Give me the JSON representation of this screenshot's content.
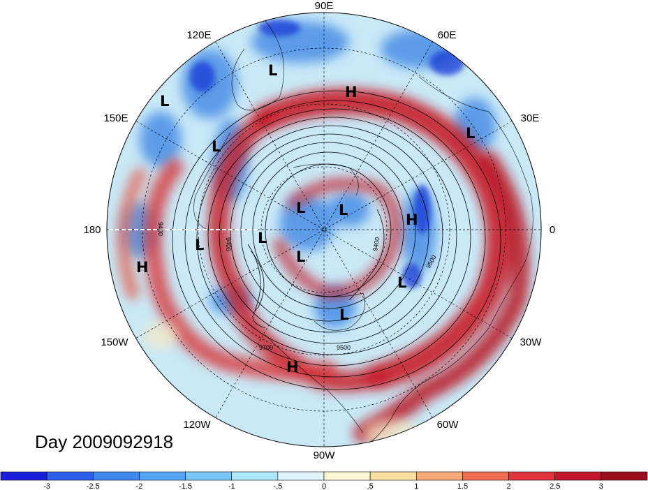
{
  "title": "Day 2009092918",
  "longitude_labels": [
    {
      "id": "lon-90e",
      "text": "90E"
    },
    {
      "id": "lon-60e",
      "text": "60E"
    },
    {
      "id": "lon-30e",
      "text": "30E"
    },
    {
      "id": "lon-0",
      "text": "0"
    },
    {
      "id": "lon-30w",
      "text": "30W"
    },
    {
      "id": "lon-60w",
      "text": "60W"
    },
    {
      "id": "lon-90w",
      "text": "90W"
    },
    {
      "id": "lon-120w",
      "text": "120W"
    },
    {
      "id": "lon-150w",
      "text": "150W"
    },
    {
      "id": "lon-180",
      "text": "180"
    },
    {
      "id": "lon-150e",
      "text": "150E"
    },
    {
      "id": "lon-120e",
      "text": "120E"
    }
  ],
  "pressure_systems": [
    {
      "id": "sys-1",
      "text": "L"
    },
    {
      "id": "sys-2",
      "text": "H"
    },
    {
      "id": "sys-3",
      "text": "L"
    },
    {
      "id": "sys-4",
      "text": "L"
    },
    {
      "id": "sys-5",
      "text": "L"
    },
    {
      "id": "sys-6",
      "text": "L"
    },
    {
      "id": "sys-7",
      "text": "L"
    },
    {
      "id": "sys-8",
      "text": "H"
    },
    {
      "id": "sys-9",
      "text": "L"
    },
    {
      "id": "sys-10",
      "text": "L"
    },
    {
      "id": "sys-11",
      "text": "L"
    },
    {
      "id": "sys-12",
      "text": "H"
    },
    {
      "id": "sys-13",
      "text": "L"
    },
    {
      "id": "sys-14",
      "text": "L"
    },
    {
      "id": "sys-15",
      "text": "H"
    }
  ],
  "contour_labels": [
    {
      "id": "c-9400a",
      "text": "9400"
    },
    {
      "id": "c-9400b",
      "text": "9400"
    },
    {
      "id": "c-9400c",
      "text": "9400"
    },
    {
      "id": "c-9500a",
      "text": "9500"
    },
    {
      "id": "c-9500b",
      "text": "9500"
    },
    {
      "id": "c-9700",
      "text": "9700"
    }
  ],
  "colorbar": {
    "labels": [
      "-3",
      "-2.5",
      "-2",
      "-1.5",
      "-1",
      "-.5",
      "0",
      ".5",
      "1",
      "1.5",
      "2",
      "2.5",
      "3"
    ],
    "colors": [
      "#1c1fd9",
      "#2f5ee8",
      "#3f86ee",
      "#55a6f3",
      "#79c8f7",
      "#aee6fb",
      "#dff5fd",
      "#fdf7d6",
      "#fbdfa0",
      "#f5aa78",
      "#ef6e52",
      "#e0333b",
      "#c2172a",
      "#9b0e1d"
    ]
  }
}
